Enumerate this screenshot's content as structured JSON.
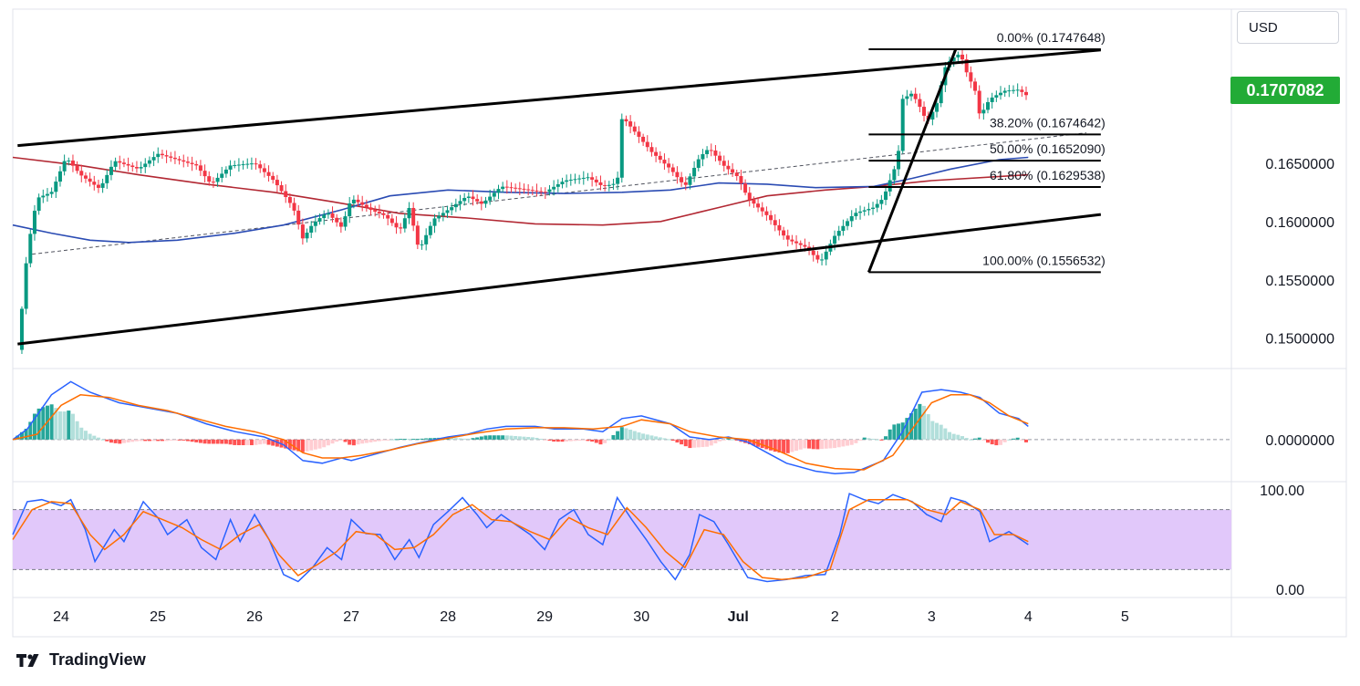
{
  "branding": {
    "name": "TradingView",
    "logo_icon": "tradingview-logo-icon"
  },
  "currency": "USD",
  "colors": {
    "up": "#089981",
    "down": "#f23645",
    "sma_red": "#b22833",
    "sma_blue": "#2a4bb3",
    "macd_line": "#2962ff",
    "signal_line": "#ff6d00",
    "hist_up_strong": "#26a69a",
    "hist_up_weak": "#b2dfdb",
    "hist_down_strong": "#ff5252",
    "hist_down_weak": "#ffcdd2",
    "stoch_k": "#2962ff",
    "stoch_d": "#ff6d00",
    "stoch_band": "#e1c8fa",
    "last_price": "#22ab36"
  },
  "last_price_label": "0.1707082",
  "chart_data": [
    {
      "type": "candlestick",
      "panel": "price",
      "y_tick_labels": [
        "0.1650000",
        "0.1600000",
        "0.1550000",
        "0.1500000"
      ],
      "y_ticks": [
        0.165,
        0.16,
        0.155,
        0.15
      ],
      "ylim": [
        0.1474,
        0.1782
      ],
      "x_tick_labels": [
        "24",
        "25",
        "26",
        "27",
        "28",
        "29",
        "30",
        "Jul",
        "2",
        "3",
        "4",
        "5"
      ],
      "x_ticks": [
        1,
        2,
        3,
        4,
        5,
        6,
        7,
        8,
        9,
        10,
        11,
        12
      ],
      "xlim": [
        0.5,
        13.1
      ],
      "last_price": 0.1707082,
      "close_path": [
        [
          0.55,
          0.149
        ],
        [
          0.6,
          0.153
        ],
        [
          0.65,
          0.1575
        ],
        [
          0.75,
          0.162
        ],
        [
          0.9,
          0.1625
        ],
        [
          1.05,
          0.1655
        ],
        [
          1.2,
          0.164
        ],
        [
          1.4,
          0.1628
        ],
        [
          1.55,
          0.1652
        ],
        [
          1.8,
          0.1645
        ],
        [
          2.0,
          0.1658
        ],
        [
          2.2,
          0.1653
        ],
        [
          2.4,
          0.1648
        ],
        [
          2.55,
          0.1632
        ],
        [
          2.75,
          0.1648
        ],
        [
          3.0,
          0.165
        ],
        [
          3.2,
          0.1635
        ],
        [
          3.4,
          0.1612
        ],
        [
          3.5,
          0.1585
        ],
        [
          3.6,
          0.1598
        ],
        [
          3.75,
          0.1608
        ],
        [
          3.9,
          0.1595
        ],
        [
          4.0,
          0.162
        ],
        [
          4.2,
          0.161
        ],
        [
          4.35,
          0.1605
        ],
        [
          4.5,
          0.1592
        ],
        [
          4.6,
          0.1612
        ],
        [
          4.7,
          0.1575
        ],
        [
          4.85,
          0.1602
        ],
        [
          5.0,
          0.161
        ],
        [
          5.2,
          0.1622
        ],
        [
          5.35,
          0.1615
        ],
        [
          5.55,
          0.163
        ],
        [
          5.75,
          0.1628
        ],
        [
          6.0,
          0.1625
        ],
        [
          6.2,
          0.1635
        ],
        [
          6.45,
          0.1638
        ],
        [
          6.6,
          0.163
        ],
        [
          6.75,
          0.1633
        ],
        [
          6.8,
          0.169
        ],
        [
          6.95,
          0.1675
        ],
        [
          7.1,
          0.166
        ],
        [
          7.3,
          0.1645
        ],
        [
          7.45,
          0.163
        ],
        [
          7.6,
          0.1655
        ],
        [
          7.7,
          0.1663
        ],
        [
          7.85,
          0.1648
        ],
        [
          8.0,
          0.1638
        ],
        [
          8.1,
          0.162
        ],
        [
          8.3,
          0.1605
        ],
        [
          8.5,
          0.1585
        ],
        [
          8.7,
          0.1578
        ],
        [
          8.85,
          0.1565
        ],
        [
          9.0,
          0.1588
        ],
        [
          9.2,
          0.1607
        ],
        [
          9.4,
          0.1612
        ],
        [
          9.5,
          0.162
        ],
        [
          9.6,
          0.1642
        ],
        [
          9.65,
          0.1652
        ],
        [
          9.7,
          0.1705
        ],
        [
          9.8,
          0.171
        ],
        [
          9.9,
          0.1695
        ],
        [
          9.95,
          0.1685
        ],
        [
          10.05,
          0.17
        ],
        [
          10.15,
          0.1735
        ],
        [
          10.25,
          0.1742
        ],
        [
          10.3,
          0.1744
        ],
        [
          10.35,
          0.173
        ],
        [
          10.45,
          0.1712
        ],
        [
          10.5,
          0.169
        ],
        [
          10.6,
          0.1705
        ],
        [
          10.75,
          0.1712
        ],
        [
          10.9,
          0.1713
        ],
        [
          11.0,
          0.1707
        ]
      ],
      "sma_red_path": [
        [
          0.5,
          0.1655
        ],
        [
          1.2,
          0.1648
        ],
        [
          1.8,
          0.164
        ],
        [
          2.5,
          0.1632
        ],
        [
          3.2,
          0.1625
        ],
        [
          3.8,
          0.1617
        ],
        [
          4.5,
          0.1607
        ],
        [
          5.2,
          0.1603
        ],
        [
          5.9,
          0.1598
        ],
        [
          6.6,
          0.1597
        ],
        [
          7.2,
          0.16
        ],
        [
          7.8,
          0.1612
        ],
        [
          8.3,
          0.1622
        ],
        [
          8.9,
          0.1627
        ],
        [
          9.4,
          0.163
        ],
        [
          10.0,
          0.1635
        ],
        [
          11.0,
          0.164
        ]
      ],
      "sma_blue_path": [
        [
          0.5,
          0.1597
        ],
        [
          0.9,
          0.159
        ],
        [
          1.3,
          0.1584
        ],
        [
          1.7,
          0.1582
        ],
        [
          2.2,
          0.1584
        ],
        [
          2.8,
          0.159
        ],
        [
          3.3,
          0.1597
        ],
        [
          3.9,
          0.161
        ],
        [
          4.4,
          0.1622
        ],
        [
          5.0,
          0.1627
        ],
        [
          5.6,
          0.1625
        ],
        [
          6.2,
          0.1624
        ],
        [
          6.8,
          0.1625
        ],
        [
          7.3,
          0.1627
        ],
        [
          7.8,
          0.1633
        ],
        [
          8.3,
          0.1632
        ],
        [
          8.8,
          0.1629
        ],
        [
          9.4,
          0.163
        ],
        [
          9.8,
          0.1637
        ],
        [
          10.2,
          0.1645
        ],
        [
          10.7,
          0.1653
        ],
        [
          11.0,
          0.1655
        ]
      ],
      "channel_upper": [
        [
          0.55,
          0.1665
        ],
        [
          11.75,
          0.1747
        ]
      ],
      "channel_lower": [
        [
          0.55,
          0.1495
        ],
        [
          11.75,
          0.1606
        ]
      ],
      "channel_midline": [
        [
          0.7,
          0.1572
        ],
        [
          11.6,
          0.1676
        ]
      ],
      "fib_retracement": {
        "anchor_low": [
          9.35,
          0.1556532
        ],
        "anchor_high": [
          10.25,
          0.1747648
        ],
        "line_x_range": [
          9.35,
          11.75
        ],
        "levels": [
          {
            "label": "0.00% (0.1747648)",
            "value": 0.1747648
          },
          {
            "label": "38.20% (0.1674642)",
            "value": 0.1674642
          },
          {
            "label": "50.00% (0.1652090)",
            "value": 0.165209
          },
          {
            "label": "61.80% (0.1629538)",
            "value": 0.1629538
          },
          {
            "label": "100.00% (0.1556532)",
            "value": 0.1556532
          }
        ]
      }
    },
    {
      "type": "macd",
      "panel": "macd",
      "y_tick_labels": [
        "0.0000000"
      ],
      "y_ticks": [
        0
      ],
      "ylim": [
        -1.6,
        2.7
      ],
      "macd_path": [
        [
          0.5,
          0.0
        ],
        [
          0.65,
          0.4
        ],
        [
          0.9,
          1.7
        ],
        [
          1.1,
          2.2
        ],
        [
          1.3,
          1.8
        ],
        [
          1.6,
          1.4
        ],
        [
          1.9,
          1.2
        ],
        [
          2.2,
          1.0
        ],
        [
          2.5,
          0.6
        ],
        [
          2.8,
          0.3
        ],
        [
          3.1,
          0.1
        ],
        [
          3.3,
          -0.2
        ],
        [
          3.5,
          -0.8
        ],
        [
          3.7,
          -0.9
        ],
        [
          3.9,
          -0.7
        ],
        [
          4.0,
          -0.8
        ],
        [
          4.2,
          -0.6
        ],
        [
          4.5,
          -0.3
        ],
        [
          4.8,
          -0.05
        ],
        [
          5.0,
          0.1
        ],
        [
          5.2,
          0.2
        ],
        [
          5.4,
          0.4
        ],
        [
          5.6,
          0.5
        ],
        [
          5.9,
          0.5
        ],
        [
          6.1,
          0.4
        ],
        [
          6.4,
          0.4
        ],
        [
          6.6,
          0.3
        ],
        [
          6.8,
          0.8
        ],
        [
          7.0,
          0.9
        ],
        [
          7.3,
          0.6
        ],
        [
          7.5,
          0.1
        ],
        [
          7.7,
          0.0
        ],
        [
          7.9,
          0.1
        ],
        [
          8.1,
          -0.1
        ],
        [
          8.3,
          -0.5
        ],
        [
          8.5,
          -0.9
        ],
        [
          8.8,
          -1.2
        ],
        [
          9.0,
          -1.3
        ],
        [
          9.2,
          -1.25
        ],
        [
          9.5,
          -0.8
        ],
        [
          9.7,
          0.3
        ],
        [
          9.9,
          1.8
        ],
        [
          10.1,
          1.9
        ],
        [
          10.3,
          1.8
        ],
        [
          10.5,
          1.6
        ],
        [
          10.7,
          1.0
        ],
        [
          10.9,
          0.8
        ],
        [
          11.0,
          0.5
        ]
      ],
      "signal_path": [
        [
          0.5,
          0.0
        ],
        [
          0.75,
          0.2
        ],
        [
          1.0,
          1.3
        ],
        [
          1.2,
          1.7
        ],
        [
          1.5,
          1.6
        ],
        [
          1.8,
          1.3
        ],
        [
          2.1,
          1.1
        ],
        [
          2.4,
          0.8
        ],
        [
          2.7,
          0.5
        ],
        [
          3.0,
          0.3
        ],
        [
          3.3,
          0.0
        ],
        [
          3.5,
          -0.5
        ],
        [
          3.7,
          -0.7
        ],
        [
          3.9,
          -0.7
        ],
        [
          4.1,
          -0.6
        ],
        [
          4.4,
          -0.4
        ],
        [
          4.7,
          -0.15
        ],
        [
          5.0,
          0.05
        ],
        [
          5.3,
          0.25
        ],
        [
          5.6,
          0.4
        ],
        [
          5.9,
          0.45
        ],
        [
          6.2,
          0.45
        ],
        [
          6.5,
          0.4
        ],
        [
          6.8,
          0.5
        ],
        [
          7.0,
          0.75
        ],
        [
          7.3,
          0.6
        ],
        [
          7.5,
          0.3
        ],
        [
          7.8,
          0.1
        ],
        [
          8.1,
          0.0
        ],
        [
          8.4,
          -0.4
        ],
        [
          8.7,
          -0.9
        ],
        [
          9.0,
          -1.1
        ],
        [
          9.3,
          -1.15
        ],
        [
          9.6,
          -0.6
        ],
        [
          9.8,
          0.4
        ],
        [
          10.0,
          1.4
        ],
        [
          10.2,
          1.7
        ],
        [
          10.4,
          1.7
        ],
        [
          10.6,
          1.4
        ],
        [
          10.8,
          0.9
        ],
        [
          11.0,
          0.6
        ]
      ]
    },
    {
      "type": "stochastic",
      "panel": "stochastic",
      "y_tick_labels": [
        "100.00",
        "0.00"
      ],
      "y_ticks": [
        100,
        0
      ],
      "ylim": [
        -8,
        108
      ],
      "bands": [
        20,
        80
      ],
      "k_path": [
        [
          0.5,
          55
        ],
        [
          0.65,
          88
        ],
        [
          0.8,
          90
        ],
        [
          1.0,
          84
        ],
        [
          1.1,
          90
        ],
        [
          1.25,
          60
        ],
        [
          1.35,
          28
        ],
        [
          1.55,
          60
        ],
        [
          1.65,
          48
        ],
        [
          1.85,
          88
        ],
        [
          2.0,
          72
        ],
        [
          2.1,
          55
        ],
        [
          2.3,
          70
        ],
        [
          2.45,
          42
        ],
        [
          2.6,
          30
        ],
        [
          2.75,
          70
        ],
        [
          2.85,
          48
        ],
        [
          3.0,
          75
        ],
        [
          3.15,
          50
        ],
        [
          3.3,
          15
        ],
        [
          3.45,
          8
        ],
        [
          3.6,
          22
        ],
        [
          3.75,
          42
        ],
        [
          3.9,
          30
        ],
        [
          4.0,
          70
        ],
        [
          4.15,
          56
        ],
        [
          4.3,
          55
        ],
        [
          4.45,
          30
        ],
        [
          4.6,
          50
        ],
        [
          4.7,
          32
        ],
        [
          4.85,
          65
        ],
        [
          5.0,
          78
        ],
        [
          5.15,
          92
        ],
        [
          5.3,
          75
        ],
        [
          5.4,
          62
        ],
        [
          5.55,
          75
        ],
        [
          5.7,
          65
        ],
        [
          5.85,
          55
        ],
        [
          6.0,
          40
        ],
        [
          6.15,
          70
        ],
        [
          6.3,
          80
        ],
        [
          6.45,
          55
        ],
        [
          6.6,
          45
        ],
        [
          6.75,
          92
        ],
        [
          6.9,
          70
        ],
        [
          7.05,
          50
        ],
        [
          7.2,
          28
        ],
        [
          7.35,
          10
        ],
        [
          7.5,
          35
        ],
        [
          7.6,
          75
        ],
        [
          7.75,
          68
        ],
        [
          7.9,
          45
        ],
        [
          8.1,
          12
        ],
        [
          8.3,
          8
        ],
        [
          8.5,
          10
        ],
        [
          8.7,
          14
        ],
        [
          8.9,
          15
        ],
        [
          9.05,
          55
        ],
        [
          9.15,
          96
        ],
        [
          9.3,
          90
        ],
        [
          9.45,
          86
        ],
        [
          9.6,
          95
        ],
        [
          9.8,
          88
        ],
        [
          9.95,
          75
        ],
        [
          10.1,
          68
        ],
        [
          10.2,
          92
        ],
        [
          10.35,
          88
        ],
        [
          10.5,
          78
        ],
        [
          10.6,
          48
        ],
        [
          10.8,
          58
        ],
        [
          11.0,
          45
        ]
      ],
      "d_path": [
        [
          0.5,
          50
        ],
        [
          0.7,
          80
        ],
        [
          0.9,
          88
        ],
        [
          1.1,
          86
        ],
        [
          1.3,
          55
        ],
        [
          1.45,
          40
        ],
        [
          1.65,
          55
        ],
        [
          1.85,
          78
        ],
        [
          2.05,
          70
        ],
        [
          2.25,
          62
        ],
        [
          2.45,
          50
        ],
        [
          2.65,
          40
        ],
        [
          2.85,
          55
        ],
        [
          3.05,
          65
        ],
        [
          3.25,
          35
        ],
        [
          3.45,
          14
        ],
        [
          3.65,
          25
        ],
        [
          3.85,
          38
        ],
        [
          4.05,
          58
        ],
        [
          4.25,
          55
        ],
        [
          4.45,
          40
        ],
        [
          4.65,
          42
        ],
        [
          4.85,
          55
        ],
        [
          5.05,
          75
        ],
        [
          5.25,
          85
        ],
        [
          5.45,
          70
        ],
        [
          5.65,
          68
        ],
        [
          5.85,
          58
        ],
        [
          6.05,
          50
        ],
        [
          6.25,
          72
        ],
        [
          6.45,
          62
        ],
        [
          6.65,
          55
        ],
        [
          6.85,
          82
        ],
        [
          7.05,
          62
        ],
        [
          7.25,
          38
        ],
        [
          7.45,
          22
        ],
        [
          7.65,
          60
        ],
        [
          7.85,
          55
        ],
        [
          8.05,
          28
        ],
        [
          8.25,
          12
        ],
        [
          8.45,
          10
        ],
        [
          8.7,
          12
        ],
        [
          8.95,
          20
        ],
        [
          9.15,
          80
        ],
        [
          9.35,
          90
        ],
        [
          9.55,
          90
        ],
        [
          9.75,
          90
        ],
        [
          9.95,
          80
        ],
        [
          10.15,
          75
        ],
        [
          10.3,
          88
        ],
        [
          10.5,
          80
        ],
        [
          10.65,
          55
        ],
        [
          10.85,
          55
        ],
        [
          11.0,
          48
        ]
      ]
    }
  ]
}
